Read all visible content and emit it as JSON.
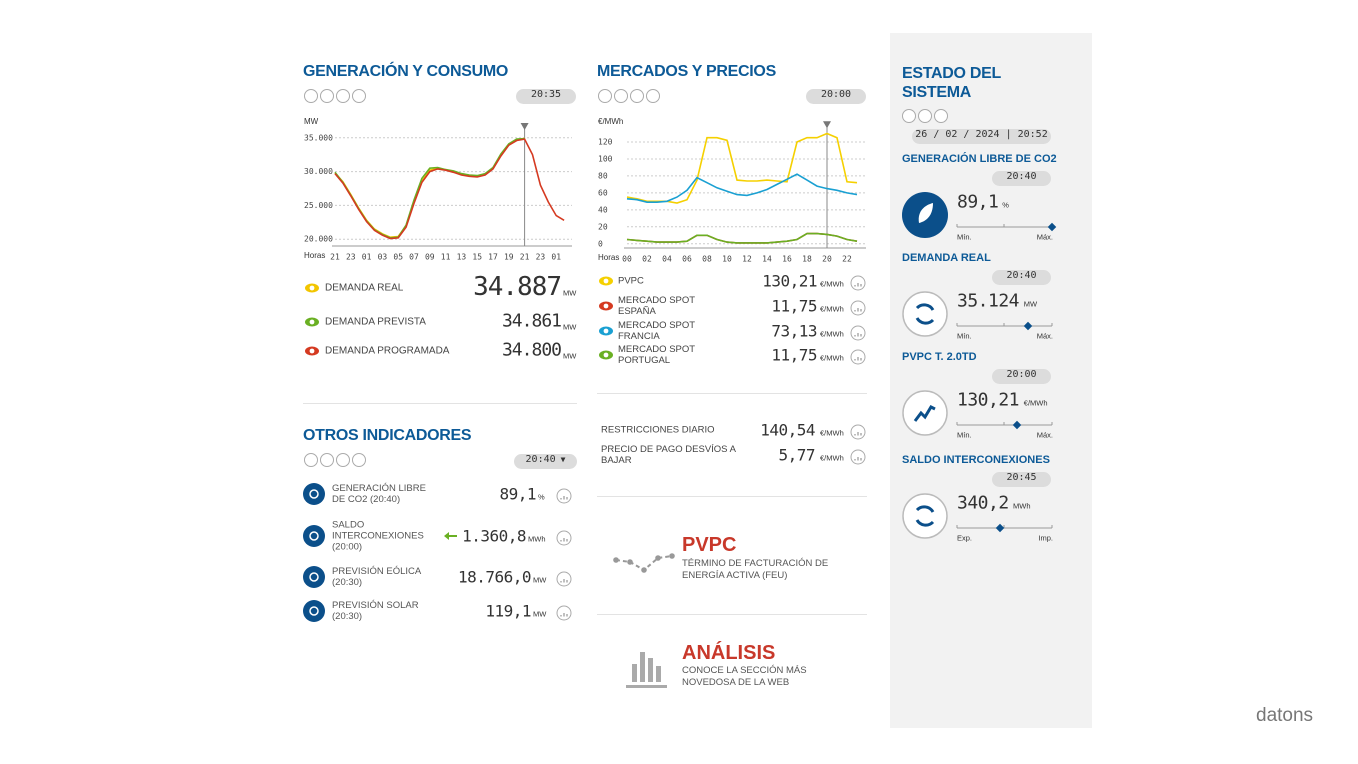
{
  "generacion": {
    "title": "GENERACIÓN Y CONSUMO",
    "time": "20:35",
    "chart": {
      "type": "line",
      "y_label": "MW",
      "x_label": "Horas",
      "categories": [
        "21",
        null,
        "23",
        null,
        "01",
        null,
        "03",
        null,
        "05",
        null,
        "07",
        null,
        "09",
        null,
        "11",
        null,
        "13",
        null,
        "15",
        null,
        "17",
        null,
        "19",
        null,
        "21",
        null,
        "23",
        null,
        "01",
        null
      ],
      "ylim": [
        19000,
        36000
      ],
      "yticks": [
        {
          "value": 20000,
          "label": "20.000"
        },
        {
          "value": 25000,
          "label": "25.000"
        },
        {
          "value": 30000,
          "label": "30.000"
        },
        {
          "value": 35000,
          "label": "35.000"
        }
      ],
      "grid": true,
      "series": [
        {
          "name": "DEMANDA REAL",
          "color": "#f2c500",
          "values": [
            29800,
            28500,
            26600,
            24600,
            22800,
            21500,
            20800,
            20300,
            20400,
            22000,
            25500,
            28600,
            30200,
            30500,
            30300,
            30000,
            29600,
            29400,
            29300,
            29600,
            30500,
            32500,
            34000,
            34700,
            34900,
            null,
            null,
            null,
            null,
            null
          ]
        },
        {
          "name": "DEMANDA PREVISTA",
          "color": "#6ab023",
          "values": [
            29900,
            28400,
            26500,
            24500,
            22700,
            21400,
            20700,
            20200,
            20300,
            22100,
            25800,
            29000,
            30500,
            30600,
            30300,
            30100,
            29700,
            29500,
            29400,
            29700,
            30600,
            32600,
            34100,
            34800,
            34861,
            null,
            null,
            null,
            null,
            null
          ]
        },
        {
          "name": "DEMANDA PROGRAMADA",
          "color": "#d53a21",
          "values": [
            29700,
            28300,
            26400,
            24400,
            22600,
            21300,
            20600,
            20100,
            20200,
            21800,
            25300,
            28400,
            30000,
            30400,
            30200,
            29900,
            29500,
            29300,
            29200,
            29500,
            30400,
            32300,
            33900,
            34600,
            34800,
            32500,
            28000,
            25500,
            23500,
            22800
          ]
        }
      ]
    },
    "indicators": [
      {
        "value": "34.887",
        "unit": "MW"
      },
      {
        "value": "34.861",
        "unit": "MW"
      },
      {
        "value": "34.800",
        "unit": "MW"
      }
    ]
  },
  "otros": {
    "title": "OTROS INDICADORES",
    "time": "20:40",
    "items": [
      {
        "label": "GENERACIÓN LIBRE DE CO2 (20:40)",
        "value": "89,1",
        "unit": "%"
      },
      {
        "label": "SALDO INTERCONEXIONES (20:00)",
        "value": "1.360,8",
        "unit": "MWh"
      },
      {
        "label": "PREVISIÓN EÓLICA (20:30)",
        "value": "18.766,0",
        "unit": "MW"
      },
      {
        "label": "PREVISIÓN SOLAR (20:30)",
        "value": "119,1",
        "unit": "MW"
      }
    ]
  },
  "mercados": {
    "title": "MERCADOS Y PRECIOS",
    "time": "20:00",
    "chart": {
      "type": "line",
      "y_label": "€/MWh",
      "x_label": "Horas",
      "categories": [
        "00",
        null,
        "02",
        null,
        "04",
        null,
        "06",
        null,
        "08",
        null,
        "10",
        null,
        "12",
        null,
        "14",
        null,
        "16",
        null,
        "18",
        null,
        "20",
        null,
        "22",
        null
      ],
      "ylim": [
        -5,
        135
      ],
      "yticks": [
        0,
        20,
        40,
        60,
        80,
        100,
        120
      ],
      "grid": true,
      "series": [
        {
          "name": "PVPC",
          "color": "#f5d000",
          "values": [
            55,
            53,
            50,
            50,
            50,
            48,
            52,
            75,
            125,
            125,
            122,
            75,
            74,
            74,
            75,
            74,
            73,
            120,
            125,
            125,
            130,
            125,
            73,
            72
          ]
        },
        {
          "name": "MERCADO SPOT ESPAÑA",
          "color": "#d53a21",
          "values": [
            5,
            4,
            3,
            2,
            2,
            2,
            3,
            10,
            10,
            5,
            2,
            1,
            1,
            1,
            1,
            2,
            3,
            5,
            12,
            12,
            11,
            9,
            5,
            3
          ]
        },
        {
          "name": "MERCADO SPOT FRANCIA",
          "color": "#1aa0d2",
          "values": [
            53,
            52,
            49,
            49,
            50,
            55,
            63,
            78,
            72,
            66,
            62,
            58,
            57,
            60,
            64,
            70,
            76,
            82,
            75,
            68,
            65,
            63,
            60,
            58
          ]
        },
        {
          "name": "MERCADO SPOT PORTUGAL",
          "color": "#6ab023",
          "values": [
            5,
            4,
            3,
            2,
            2,
            2,
            3,
            10,
            10,
            5,
            2,
            1,
            1,
            1,
            1,
            2,
            3,
            5,
            12,
            12,
            11,
            9,
            5,
            3
          ]
        }
      ]
    },
    "indicators": [
      {
        "value": "130,21",
        "unit": "€/MWh"
      },
      {
        "value": "11,75",
        "unit": "€/MWh"
      },
      {
        "value": "73,13",
        "unit": "€/MWh"
      },
      {
        "value": "11,75",
        "unit": "€/MWh"
      }
    ],
    "extras": [
      {
        "label": "RESTRICCIONES DIARIO",
        "value": "140,54",
        "unit": "€/MWh"
      },
      {
        "label": "PRECIO DE PAGO DESVÍOS A BAJAR",
        "value": "5,77",
        "unit": "€/MWh"
      }
    ]
  },
  "pvpc": {
    "title": "PVPC",
    "text": "TÉRMINO DE FACTURACIÓN DE ENERGÍA ACTIVA (FEU)"
  },
  "analisis": {
    "title": "ANÁLISIS",
    "text": "CONOCE LA SECCIÓN MÁS NOVEDOSA DE LA WEB"
  },
  "estado": {
    "title": "ESTADO DEL SISTEMA",
    "datetime": "26 / 02 / 2024 | 20:52",
    "items": [
      {
        "title": "GENERACIÓN LIBRE DE CO2",
        "time": "20:40",
        "value": "89,1",
        "unit": "%",
        "min": "Mín.",
        "max": "Máx."
      },
      {
        "title": "DEMANDA REAL",
        "time": "20:40",
        "value": "35.124",
        "unit": "MW",
        "min": "Mín.",
        "max": "Máx."
      },
      {
        "title": "PVPC T. 2.0TD",
        "time": "20:00",
        "value": "130,21",
        "unit": "€/MWh",
        "min": "Mín.",
        "max": "Máx."
      },
      {
        "title": "SALDO INTERCONEXIONES",
        "time": "20:45",
        "value": "340,2",
        "unit": "MWh",
        "min": "Exp.",
        "max": "Imp."
      }
    ]
  },
  "watermark": "datons"
}
